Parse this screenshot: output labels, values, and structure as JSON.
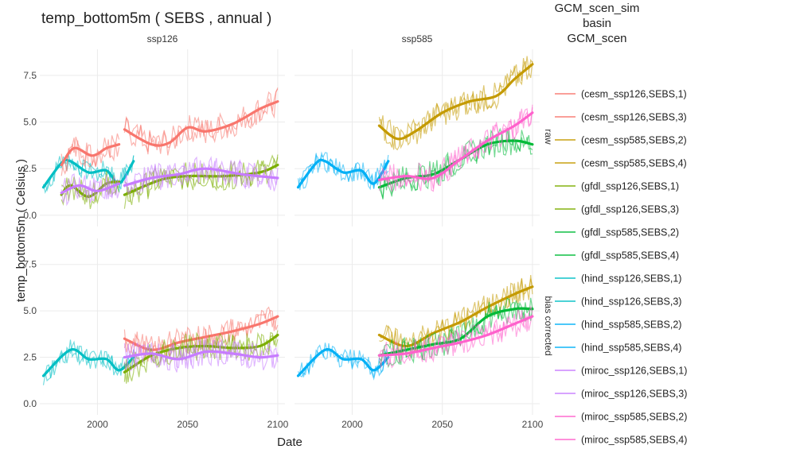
{
  "chart_data": {
    "type": "line",
    "title": "temp_bottom5m ( SEBS , annual )",
    "xlabel": "Date",
    "ylabel": "temp_bottom5m ( Celsius )",
    "x_ticks": [
      2000,
      2050,
      2100
    ],
    "y_ticks": [
      0.0,
      2.5,
      5.0,
      7.5
    ],
    "y_tick_labels": [
      "0.0",
      "2.5",
      "5.0",
      "7.5"
    ],
    "xlim": [
      1968,
      2104
    ],
    "ylim": [
      -0.6,
      8.9
    ],
    "grid": true,
    "legend_position": "right",
    "legend_title": [
      "GCM_scen_sim",
      "basin",
      "GCM_scen"
    ],
    "columns": [
      "ssp126",
      "ssp585"
    ],
    "rows": [
      "raw",
      "bias corrected"
    ],
    "legend": [
      {
        "label": "(cesm_ssp126,SEBS,1)",
        "color": "#F8766D"
      },
      {
        "label": "(cesm_ssp126,SEBS,3)",
        "color": "#F8766D"
      },
      {
        "label": "(cesm_ssp585,SEBS,2)",
        "color": "#C49A00"
      },
      {
        "label": "(cesm_ssp585,SEBS,4)",
        "color": "#C49A00"
      },
      {
        "label": "(gfdl_ssp126,SEBS,1)",
        "color": "#7CAE00"
      },
      {
        "label": "(gfdl_ssp126,SEBS,3)",
        "color": "#7CAE00"
      },
      {
        "label": "(gfdl_ssp585,SEBS,2)",
        "color": "#00BA38"
      },
      {
        "label": "(gfdl_ssp585,SEBS,4)",
        "color": "#00BA38"
      },
      {
        "label": "(hind_ssp126,SEBS,1)",
        "color": "#00BFC4"
      },
      {
        "label": "(hind_ssp126,SEBS,3)",
        "color": "#00BFC4"
      },
      {
        "label": "(hind_ssp585,SEBS,2)",
        "color": "#00B0F6"
      },
      {
        "label": "(hind_ssp585,SEBS,4)",
        "color": "#00B0F6"
      },
      {
        "label": "(miroc_ssp126,SEBS,1)",
        "color": "#C77CFF"
      },
      {
        "label": "(miroc_ssp126,SEBS,3)",
        "color": "#C77CFF"
      },
      {
        "label": "(miroc_ssp585,SEBS,2)",
        "color": "#FF61CC"
      },
      {
        "label": "(miroc_ssp585,SEBS,4)",
        "color": "#FF61CC"
      }
    ],
    "panels": [
      {
        "column": "ssp126",
        "row": "raw",
        "series": [
          {
            "name": "hind",
            "color": "#00BFC4",
            "x": [
              1970,
              1980,
              1985,
              1995,
              2005,
              2012,
              2020
            ],
            "y": [
              1.5,
              2.8,
              2.9,
              2.3,
              2.4,
              1.7,
              2.9
            ]
          },
          {
            "name": "cesm",
            "color": "#F8766D",
            "x": [
              1980,
              1987,
              1997,
              2005,
              2012
            ],
            "y": [
              2.7,
              3.6,
              3.2,
              3.6,
              3.8
            ]
          },
          {
            "name": "cesm",
            "color": "#F8766D",
            "x": [
              2015,
              2030,
              2040,
              2050,
              2060,
              2075,
              2090,
              2100
            ],
            "y": [
              4.6,
              3.8,
              3.9,
              4.7,
              4.5,
              4.9,
              5.7,
              6.1
            ]
          },
          {
            "name": "gfdl",
            "color": "#7CAE00",
            "x": [
              1980,
              1985,
              1995,
              2005,
              2012
            ],
            "y": [
              1.1,
              1.6,
              1.0,
              1.7,
              1.8
            ]
          },
          {
            "name": "gfdl",
            "color": "#7CAE00",
            "x": [
              2015,
              2035,
              2050,
              2070,
              2090,
              2100
            ],
            "y": [
              1.1,
              1.9,
              2.1,
              2.1,
              2.3,
              2.7
            ]
          },
          {
            "name": "miroc",
            "color": "#C77CFF",
            "x": [
              1980,
              1990,
              2000,
              2012
            ],
            "y": [
              1.2,
              1.6,
              1.3,
              1.7
            ]
          },
          {
            "name": "miroc",
            "color": "#C77CFF",
            "x": [
              2015,
              2030,
              2045,
              2060,
              2080,
              2100
            ],
            "y": [
              1.6,
              2.0,
              2.2,
              2.5,
              2.2,
              2.0
            ]
          }
        ]
      },
      {
        "column": "ssp585",
        "row": "raw",
        "series": [
          {
            "name": "hind",
            "color": "#00B0F6",
            "x": [
              1970,
              1980,
              1985,
              1995,
              2005,
              2012,
              2020
            ],
            "y": [
              1.5,
              2.8,
              2.9,
              2.3,
              2.4,
              1.7,
              2.9
            ]
          },
          {
            "name": "cesm",
            "color": "#C49A00",
            "x": [
              2015,
              2025,
              2035,
              2050,
              2065,
              2080,
              2090,
              2100
            ],
            "y": [
              4.8,
              4.1,
              4.5,
              5.5,
              6.1,
              6.4,
              7.3,
              8.1
            ]
          },
          {
            "name": "gfdl",
            "color": "#00BA38",
            "x": [
              2015,
              2030,
              2045,
              2060,
              2075,
              2090,
              2100
            ],
            "y": [
              1.5,
              2.0,
              2.2,
              3.0,
              3.8,
              4.0,
              3.8
            ]
          },
          {
            "name": "miroc",
            "color": "#FF61CC",
            "x": [
              2015,
              2030,
              2045,
              2060,
              2075,
              2090,
              2100
            ],
            "y": [
              1.9,
              2.1,
              2.0,
              3.0,
              4.0,
              4.8,
              5.5
            ]
          }
        ]
      },
      {
        "column": "ssp126",
        "row": "bias corrected",
        "series": [
          {
            "name": "hind",
            "color": "#00BFC4",
            "x": [
              1970,
              1985,
              1995,
              2005,
              2012,
              2020
            ],
            "y": [
              1.5,
              2.9,
              2.4,
              2.4,
              1.8,
              2.5
            ]
          },
          {
            "name": "cesm",
            "color": "#F8766D",
            "x": [
              2015,
              2030,
              2045,
              2060,
              2075,
              2090,
              2100
            ],
            "y": [
              3.5,
              2.9,
              3.3,
              3.6,
              3.9,
              4.3,
              4.7
            ]
          },
          {
            "name": "gfdl",
            "color": "#7CAE00",
            "x": [
              2015,
              2030,
              2045,
              2060,
              2075,
              2090,
              2100
            ],
            "y": [
              1.7,
              2.6,
              3.0,
              3.1,
              3.0,
              3.1,
              3.7
            ]
          },
          {
            "name": "miroc",
            "color": "#C77CFF",
            "x": [
              2015,
              2030,
              2045,
              2060,
              2075,
              2090,
              2100
            ],
            "y": [
              2.5,
              2.7,
              2.4,
              2.8,
              2.7,
              2.5,
              2.6
            ]
          }
        ]
      },
      {
        "column": "ssp585",
        "row": "bias corrected",
        "series": [
          {
            "name": "hind",
            "color": "#00B0F6",
            "x": [
              1970,
              1985,
              1995,
              2005,
              2012,
              2020
            ],
            "y": [
              1.5,
              2.9,
              2.4,
              2.4,
              1.8,
              2.5
            ]
          },
          {
            "name": "cesm",
            "color": "#C49A00",
            "x": [
              2015,
              2030,
              2045,
              2060,
              2075,
              2090,
              2100
            ],
            "y": [
              3.7,
              3.1,
              3.8,
              4.4,
              5.2,
              5.9,
              6.3
            ]
          },
          {
            "name": "gfdl",
            "color": "#00BA38",
            "x": [
              2015,
              2030,
              2045,
              2060,
              2075,
              2090,
              2100
            ],
            "y": [
              2.6,
              2.9,
              3.2,
              3.5,
              4.7,
              5.1,
              5.1
            ]
          },
          {
            "name": "miroc",
            "color": "#FF61CC",
            "x": [
              2015,
              2030,
              2045,
              2060,
              2075,
              2090,
              2100
            ],
            "y": [
              2.6,
              2.7,
              3.0,
              3.3,
              3.7,
              4.3,
              4.7
            ]
          }
        ]
      }
    ]
  }
}
